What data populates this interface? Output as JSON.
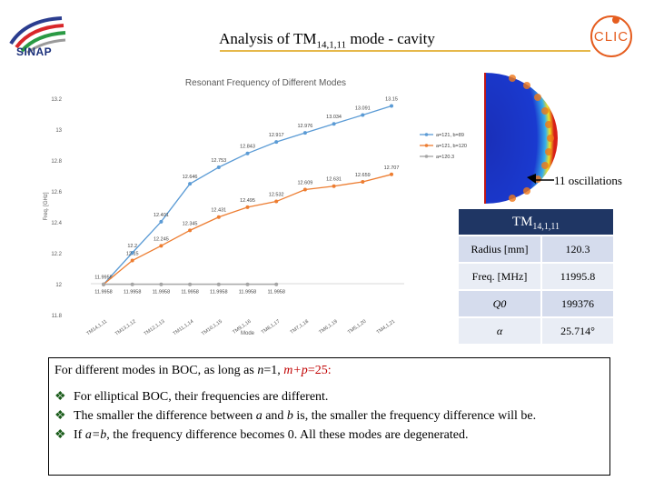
{
  "slide": {
    "title_main": "Analysis of TM",
    "title_sub": "14,1,11",
    "title_tail": " mode - cavity"
  },
  "logos": {
    "left_text": "SINAP",
    "right_text": "CLIC"
  },
  "chart_data": {
    "type": "line",
    "title": "Resonant Frequency of Different Modes",
    "xlabel": "Mode",
    "ylabel": "Freq. [GHz]",
    "ylim": [
      11.8,
      13.2
    ],
    "yticks": [
      11.8,
      12,
      12.2,
      12.4,
      12.6,
      12.8,
      13,
      13.2
    ],
    "ytick_labels": [
      "11.8",
      "12",
      "12.2",
      "12.4",
      "12.6",
      "12.8",
      "13",
      "13.2"
    ],
    "categories": [
      "TM14,1,11",
      "TM13,1,12",
      "TM12,1,13",
      "TM11,1,14",
      "TM10,1,15",
      "TM9,1,16",
      "TM8,1,17",
      "TM7,1,18",
      "TM6,1,19",
      "TM5,1,20",
      "TM4,1,21"
    ],
    "series": [
      {
        "name": "a=121, b=89",
        "color": "#5b9bd5",
        "values": [
          11.9958,
          12.2,
          12.401,
          12.646,
          12.753,
          12.843,
          12.917,
          12.976,
          13.034,
          13.091,
          13.15
        ]
      },
      {
        "name": "a=121, b=120",
        "color": "#ed7d31",
        "values": [
          11.9958,
          12.15,
          12.245,
          12.345,
          12.431,
          12.495,
          12.532,
          12.609,
          12.631,
          12.659,
          12.707
        ]
      },
      {
        "name": "a=120.3",
        "color": "#a5a5a5",
        "values": [
          11.9958,
          11.9958,
          11.9958,
          11.9958,
          11.9958,
          11.9958,
          11.9958,
          null,
          null,
          null,
          null
        ]
      }
    ],
    "point_labels": [
      [
        "11.9958",
        "12.2",
        "12.401",
        "12.646",
        "12.753",
        "12.843",
        "12.917",
        "12.976",
        "13.034",
        "13.091",
        "13.15"
      ],
      [
        "",
        "12.15",
        "12.245",
        "12.345",
        "12.431",
        "12.495",
        "12.532",
        "12.609",
        "12.631",
        "12.659",
        "12.707"
      ],
      [
        "11.9958",
        "11.9958",
        "11.9958",
        "11.9958",
        "11.9958",
        "11.9958",
        "11.9958",
        "",
        "",
        "",
        ""
      ]
    ],
    "legend_position": "right",
    "grid": false
  },
  "field": {
    "annotation": "11 oscillations"
  },
  "table": {
    "header_main": "TM",
    "header_sub": "14,1,11",
    "rows": [
      {
        "key": "Radius [mm]",
        "value": "120.3"
      },
      {
        "key": "Freq. [MHz]",
        "value": "11995.8"
      },
      {
        "key": "Q0",
        "value": "199376"
      },
      {
        "key": "α",
        "value": "25.714°"
      }
    ]
  },
  "summary": {
    "intro_a": "For different modes in BOC, as long as ",
    "intro_n": "n",
    "intro_b": "=1, ",
    "intro_mp": "m+p",
    "intro_c": "=25:",
    "b1": "For elliptical BOC, their frequencies are different.",
    "b2_a": "The smaller the difference between ",
    "b2_var_a": "a",
    "b2_and": " and ",
    "b2_var_b": "b",
    "b2_b": " is, the smaller the frequency difference will be.",
    "b3_a": "If ",
    "b3_eq": "a=b",
    "b3_b": ", the frequency difference becomes 0. All these modes are degenerated."
  }
}
